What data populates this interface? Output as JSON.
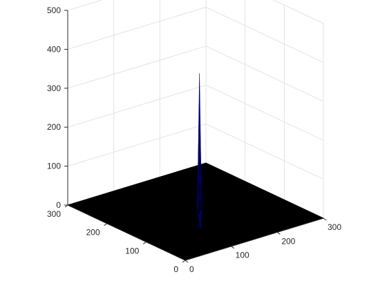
{
  "chart_data": {
    "type": "surface",
    "title": "",
    "xlabel": "",
    "ylabel": "",
    "zlabel": "",
    "xlim": [
      0,
      300
    ],
    "ylim": [
      0,
      300
    ],
    "zlim": [
      0,
      500
    ],
    "x_ticks": [
      "0",
      "100",
      "200",
      "300"
    ],
    "y_ticks": [
      "0",
      "100",
      "200",
      "300"
    ],
    "z_ticks": [
      "0",
      "100",
      "200",
      "300",
      "400",
      "500"
    ],
    "grid": true,
    "surface_color": "#000000",
    "edge_color": "#000080",
    "baseline_z": 0,
    "peak": {
      "x": 150,
      "y": 140,
      "z": 360
    },
    "peak_profile": [
      {
        "x": 150,
        "y": 140,
        "z": 360
      },
      {
        "x": 148,
        "y": 138,
        "z": 310
      },
      {
        "x": 152,
        "y": 142,
        "z": 290
      },
      {
        "x": 146,
        "y": 136,
        "z": 250
      },
      {
        "x": 154,
        "y": 144,
        "z": 230
      },
      {
        "x": 144,
        "y": 134,
        "z": 180
      },
      {
        "x": 156,
        "y": 146,
        "z": 150
      },
      {
        "x": 142,
        "y": 132,
        "z": 120
      },
      {
        "x": 158,
        "y": 148,
        "z": 90
      },
      {
        "x": 140,
        "y": 130,
        "z": 60
      },
      {
        "x": 160,
        "y": 150,
        "z": 40
      }
    ]
  }
}
